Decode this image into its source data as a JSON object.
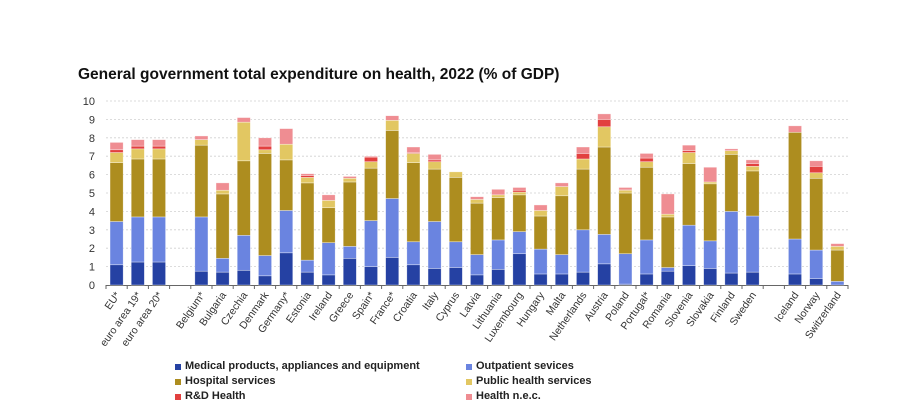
{
  "chart_data": {
    "type": "bar",
    "stacked": true,
    "title": "General government total expenditure on health, 2022 (% of GDP)",
    "xlabel": "",
    "ylabel": "",
    "ylim": [
      0,
      10
    ],
    "yticks": [
      0,
      1,
      2,
      3,
      4,
      5,
      6,
      7,
      8,
      9,
      10
    ],
    "grid": true,
    "legend_position": "bottom",
    "groups": [
      [
        "EU*",
        "euro area 19*",
        "euro area 20*"
      ],
      [
        "Belgium*",
        "Bulgaria",
        "Czechia",
        "Denmark",
        "Germany*",
        "Estonia",
        "Ireland",
        "Greece",
        "Spain*",
        "France*",
        "Croatia",
        "Italy",
        "Cyprus",
        "Latvia",
        "Lithuania",
        "Luxembourg",
        "Hungary",
        "Malta",
        "Netherlands",
        "Austria",
        "Poland",
        "Portugal*",
        "Romania",
        "Slovenia",
        "Slovakia",
        "Finland",
        "Sweden"
      ],
      [
        "Iceland",
        "Norway",
        "Switzerland"
      ]
    ],
    "categories": [
      "EU*",
      "euro area 19*",
      "euro area 20*",
      "Belgium*",
      "Bulgaria",
      "Czechia",
      "Denmark",
      "Germany*",
      "Estonia",
      "Ireland",
      "Greece",
      "Spain*",
      "France*",
      "Croatia",
      "Italy",
      "Cyprus",
      "Latvia",
      "Lithuania",
      "Luxembourg",
      "Hungary",
      "Malta",
      "Netherlands",
      "Austria",
      "Poland",
      "Portugal*",
      "Romania",
      "Slovenia",
      "Slovakia",
      "Finland",
      "Sweden",
      "Iceland",
      "Norway",
      "Switzerland"
    ],
    "series": [
      {
        "name": "Medical products, appliances and equipment",
        "color": "#2541a3",
        "values": [
          1.1,
          1.25,
          1.25,
          0.75,
          0.7,
          0.8,
          0.5,
          1.75,
          0.7,
          0.55,
          1.45,
          1.0,
          1.5,
          1.1,
          0.9,
          0.95,
          0.55,
          0.85,
          1.7,
          0.6,
          0.6,
          0.7,
          1.15,
          0.05,
          0.6,
          0.75,
          1.05,
          0.9,
          0.65,
          0.7,
          0.6,
          0.35,
          0.0
        ]
      },
      {
        "name": "Outpatient sevices",
        "color": "#6a84e0",
        "values": [
          2.35,
          2.45,
          2.45,
          2.95,
          0.75,
          1.9,
          1.1,
          2.3,
          0.65,
          1.75,
          0.65,
          2.5,
          3.2,
          1.25,
          2.55,
          1.4,
          1.1,
          1.6,
          1.2,
          1.35,
          1.05,
          2.3,
          1.6,
          1.65,
          1.85,
          0.2,
          2.2,
          1.5,
          3.35,
          3.05,
          1.9,
          1.55,
          0.2
        ]
      },
      {
        "name": "Hospital services",
        "color": "#ad8d1f",
        "values": [
          3.2,
          3.15,
          3.15,
          3.9,
          3.5,
          4.05,
          5.55,
          2.75,
          4.2,
          1.9,
          3.5,
          2.85,
          3.7,
          4.3,
          2.85,
          3.5,
          2.8,
          2.3,
          2.0,
          1.8,
          3.2,
          3.3,
          4.75,
          3.3,
          3.95,
          2.75,
          3.35,
          3.1,
          3.1,
          2.45,
          5.8,
          3.9,
          1.7
        ]
      },
      {
        "name": "Public health services",
        "color": "#e2c762",
        "values": [
          0.55,
          0.55,
          0.55,
          0.3,
          0.2,
          2.1,
          0.2,
          0.85,
          0.3,
          0.4,
          0.2,
          0.35,
          0.55,
          0.5,
          0.4,
          0.3,
          0.2,
          0.15,
          0.15,
          0.3,
          0.5,
          0.55,
          1.1,
          0.15,
          0.3,
          0.15,
          0.6,
          0.1,
          0.2,
          0.25,
          0.0,
          0.3,
          0.2
        ]
      },
      {
        "name": "R&D Health",
        "color": "#e2403f",
        "values": [
          0.15,
          0.15,
          0.15,
          0.0,
          0.0,
          0.0,
          0.2,
          0.0,
          0.1,
          0.0,
          0.0,
          0.25,
          0.0,
          0.05,
          0.1,
          0.0,
          0.0,
          0.0,
          0.1,
          0.0,
          0.0,
          0.3,
          0.4,
          0.05,
          0.2,
          0.0,
          0.1,
          0.0,
          0.0,
          0.15,
          0.0,
          0.35,
          0.0
        ]
      },
      {
        "name": "Health n.e.c.",
        "color": "#ef8d92",
        "values": [
          0.4,
          0.35,
          0.35,
          0.2,
          0.4,
          0.25,
          0.45,
          0.85,
          0.1,
          0.3,
          0.1,
          0.05,
          0.25,
          0.3,
          0.3,
          0.0,
          0.15,
          0.3,
          0.15,
          0.3,
          0.2,
          0.35,
          0.3,
          0.1,
          0.25,
          1.1,
          0.3,
          0.8,
          0.1,
          0.2,
          0.35,
          0.3,
          0.15
        ]
      }
    ]
  },
  "legend": {
    "items": [
      {
        "label": "Medical products, appliances and equipment",
        "color": "#2541a3"
      },
      {
        "label": "Outpatient sevices",
        "color": "#6a84e0"
      },
      {
        "label": "Hospital services",
        "color": "#ad8d1f"
      },
      {
        "label": "Public health services",
        "color": "#e2c762"
      },
      {
        "label": "R&D Health",
        "color": "#e2403f"
      },
      {
        "label": "Health n.e.c.",
        "color": "#ef8d92"
      }
    ]
  }
}
